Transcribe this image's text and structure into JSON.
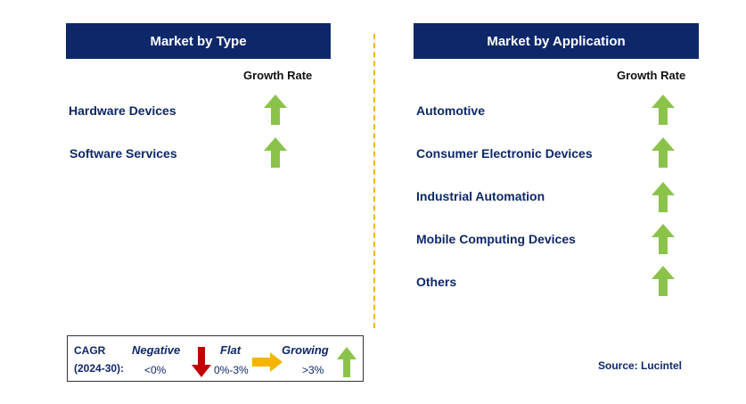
{
  "left_panel": {
    "title": "Market by Type",
    "growth_rate_label": "Growth Rate",
    "items": [
      {
        "label": "Hardware Devices",
        "trend": "up"
      },
      {
        "label": "Software Services",
        "trend": "up"
      }
    ]
  },
  "right_panel": {
    "title": "Market by Application",
    "growth_rate_label": "Growth Rate",
    "items": [
      {
        "label": "Automotive",
        "trend": "up"
      },
      {
        "label": "Consumer Electronic Devices",
        "trend": "up"
      },
      {
        "label": "Industrial Automation",
        "trend": "up"
      },
      {
        "label": "Mobile Computing Devices",
        "trend": "up"
      },
      {
        "label": "Others",
        "trend": "up"
      }
    ]
  },
  "legend": {
    "cagr_line1": "CAGR",
    "cagr_line2": "(2024-30):",
    "negative_label": "Negative",
    "negative_range": "<0%",
    "flat_label": "Flat",
    "flat_range": "0%-3%",
    "growing_label": "Growing",
    "growing_range": ">3%"
  },
  "source": "Source: Lucintel",
  "colors": {
    "header_bg": "#0d2769",
    "up_arrow": "#8bc34a",
    "down_arrow": "#c00000",
    "flat_arrow": "#f5b400",
    "divider": "#f5b400"
  }
}
